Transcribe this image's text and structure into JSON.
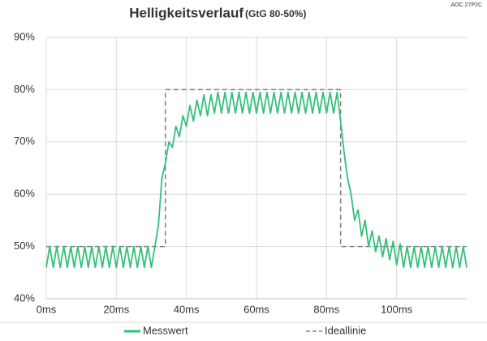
{
  "chart_data": {
    "type": "line",
    "title": "Helligkeitsverlauf",
    "subtitle": "(GtG 80-50%)",
    "annotation": "AOC 27P2C",
    "x": [
      0,
      1,
      2,
      3,
      4,
      5,
      6,
      7,
      8,
      9,
      10,
      11,
      12,
      13,
      14,
      15,
      16,
      17,
      18,
      19,
      20,
      21,
      22,
      23,
      24,
      25,
      26,
      27,
      28,
      29,
      30,
      31,
      32,
      33,
      34,
      35,
      36,
      37,
      38,
      39,
      40,
      41,
      42,
      43,
      44,
      45,
      46,
      47,
      48,
      49,
      50,
      51,
      52,
      53,
      54,
      55,
      56,
      57,
      58,
      59,
      60,
      61,
      62,
      63,
      64,
      65,
      66,
      67,
      68,
      69,
      70,
      71,
      72,
      73,
      74,
      75,
      76,
      77,
      78,
      79,
      80,
      81,
      82,
      83,
      84,
      85,
      86,
      87,
      88,
      89,
      90,
      91,
      92,
      93,
      94,
      95,
      96,
      97,
      98,
      99,
      100,
      101,
      102,
      103,
      104,
      105,
      106,
      107,
      108,
      109,
      110,
      111,
      112,
      113,
      114,
      115,
      116,
      117,
      118,
      119,
      120
    ],
    "series": [
      {
        "name": "Messwert",
        "color": "#33c07a",
        "dashed": false,
        "values": [
          46,
          50,
          46,
          50,
          46,
          50,
          46,
          50,
          46,
          50,
          46,
          50,
          46,
          50,
          46,
          50,
          46,
          50,
          46,
          50,
          46,
          50,
          46,
          50,
          46,
          50,
          46,
          50,
          46,
          50,
          46,
          50,
          54,
          63,
          66,
          70,
          69,
          73,
          71,
          75,
          73,
          77,
          74,
          78,
          75,
          79,
          75,
          79,
          75.5,
          79.5,
          75.5,
          79.5,
          75.5,
          79.5,
          75.5,
          79.5,
          75.5,
          79.5,
          75.5,
          79.5,
          75.5,
          79.5,
          75.5,
          79.5,
          75.5,
          79.5,
          75.5,
          79.5,
          75.5,
          79.5,
          75.5,
          79.5,
          75.5,
          79.5,
          75.5,
          79.5,
          75.5,
          79.5,
          75.5,
          79.5,
          75.5,
          79.5,
          75.5,
          79.5,
          74,
          68,
          63,
          60,
          55,
          57,
          52,
          55,
          50,
          53,
          49,
          52,
          48,
          51.5,
          47.5,
          51,
          46.5,
          50.5,
          46,
          50,
          46,
          50,
          46,
          50,
          46,
          50,
          46,
          50,
          46,
          50,
          46,
          50,
          46,
          50,
          46,
          50,
          46
        ]
      },
      {
        "name": "Ideallinie",
        "color": "#7f7f7f",
        "dashed": true,
        "x": [
          0,
          34,
          34,
          84,
          84,
          120
        ],
        "values": [
          50,
          50,
          80,
          80,
          50,
          50
        ]
      }
    ],
    "xlim": [
      0,
      120
    ],
    "ylim": [
      40,
      90
    ],
    "xticks": [
      {
        "value": 0,
        "label": "0ms"
      },
      {
        "value": 20,
        "label": "20ms"
      },
      {
        "value": 40,
        "label": "40ms"
      },
      {
        "value": 60,
        "label": "60ms"
      },
      {
        "value": 80,
        "label": "80ms"
      },
      {
        "value": 100,
        "label": "100ms"
      }
    ],
    "yticks": [
      {
        "value": 40,
        "label": "40%"
      },
      {
        "value": 50,
        "label": "50%"
      },
      {
        "value": 60,
        "label": "60%"
      },
      {
        "value": 70,
        "label": "70%"
      },
      {
        "value": 80,
        "label": "80%"
      },
      {
        "value": 90,
        "label": "90%"
      }
    ],
    "grid": true,
    "legend": "bottom"
  }
}
